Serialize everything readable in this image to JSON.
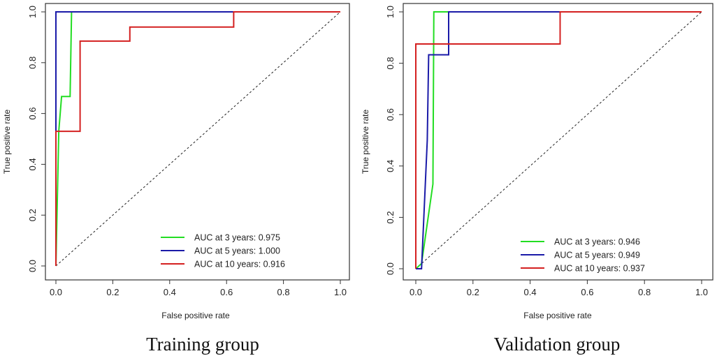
{
  "chart_data": [
    {
      "type": "line",
      "title": "Training group",
      "xlabel": "False positive rate",
      "ylabel": "True positive rate",
      "xlim": [
        0,
        1
      ],
      "ylim": [
        0,
        1
      ],
      "xticks": [
        "0.0",
        "0.2",
        "0.4",
        "0.6",
        "0.8",
        "1.0"
      ],
      "yticks": [
        "0.0",
        "0.2",
        "0.4",
        "0.6",
        "0.8",
        "1.0"
      ],
      "grid": false,
      "legend_position": "bottom-right",
      "colors": [
        "#22dd22",
        "#1a1aa8",
        "#d42020"
      ],
      "series": [
        {
          "name": "AUC at 3 years: 0.975",
          "points": [
            [
              0,
              0
            ],
            [
              0.01,
              0.53
            ],
            [
              0.02,
              0.667
            ],
            [
              0.05,
              0.667
            ],
            [
              0.055,
              1.0
            ],
            [
              1,
              1
            ]
          ]
        },
        {
          "name": "AUC at 5 years: 1.000",
          "points": [
            [
              0,
              0
            ],
            [
              0,
              0.53
            ],
            [
              0,
              1.0
            ],
            [
              1,
              1
            ]
          ]
        },
        {
          "name": "AUC at 10 years: 0.916",
          "points": [
            [
              0,
              0
            ],
            [
              0,
              0.53
            ],
            [
              0.085,
              0.53
            ],
            [
              0.085,
              0.885
            ],
            [
              0.26,
              0.885
            ],
            [
              0.26,
              0.94
            ],
            [
              0.625,
              0.94
            ],
            [
              0.625,
              1.0
            ],
            [
              1,
              1
            ]
          ]
        }
      ],
      "reference_line": [
        [
          0,
          0
        ],
        [
          1,
          1
        ]
      ]
    },
    {
      "type": "line",
      "title": "Validation group",
      "xlabel": "False positive rate",
      "ylabel": "True positive rate",
      "xlim": [
        0,
        1
      ],
      "ylim": [
        0,
        1
      ],
      "xticks": [
        "0.0",
        "0.2",
        "0.4",
        "0.6",
        "0.8",
        "1.0"
      ],
      "yticks": [
        "0.0",
        "0.2",
        "0.4",
        "0.6",
        "0.8",
        "1.0"
      ],
      "grid": false,
      "legend_position": "bottom-right",
      "colors": [
        "#22dd22",
        "#1a1aa8",
        "#d42020"
      ],
      "series": [
        {
          "name": "AUC at 3 years: 0.946",
          "points": [
            [
              0,
              0
            ],
            [
              0.02,
              0.02
            ],
            [
              0.06,
              0.33
            ],
            [
              0.063,
              1.0
            ],
            [
              1,
              1
            ]
          ]
        },
        {
          "name": "AUC at 5 years: 0.949",
          "points": [
            [
              0,
              0
            ],
            [
              0.02,
              0
            ],
            [
              0.04,
              0.5
            ],
            [
              0.045,
              0.833
            ],
            [
              0.115,
              0.833
            ],
            [
              0.115,
              1.0
            ],
            [
              1,
              1
            ]
          ]
        },
        {
          "name": "AUC at 10 years: 0.937",
          "points": [
            [
              0,
              0
            ],
            [
              0,
              0.875
            ],
            [
              0.505,
              0.875
            ],
            [
              0.505,
              1.0
            ],
            [
              1,
              1
            ]
          ]
        }
      ],
      "reference_line": [
        [
          0,
          0
        ],
        [
          1,
          1
        ]
      ]
    }
  ]
}
